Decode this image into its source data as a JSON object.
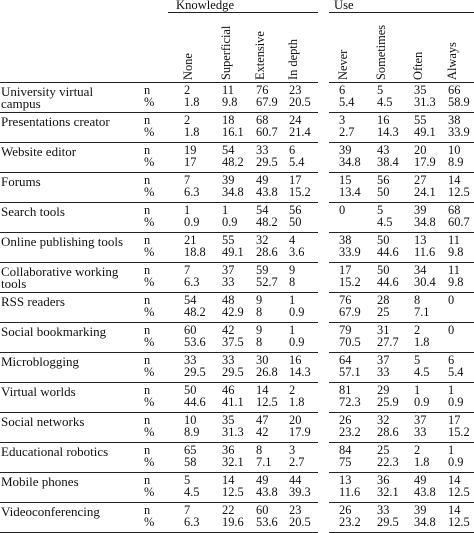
{
  "groups": {
    "knowledge": "Knowledge",
    "use": "Use"
  },
  "knowledge_columns": [
    "None",
    "Superficial",
    "Extensive",
    "In depth"
  ],
  "use_columns": [
    "Never",
    "Sometimes",
    "Often",
    "Always"
  ],
  "rows": [
    {
      "label": [
        "University virtual",
        "campus"
      ],
      "n": [
        "2",
        "11",
        "76",
        "23",
        "6",
        "5",
        "35",
        "66"
      ],
      "pct": [
        "1.8",
        "9.8",
        "67.9",
        "20.5",
        "5.4",
        "4.5",
        "31.3",
        "58.9"
      ]
    },
    {
      "label": [
        "Presentations creator"
      ],
      "n": [
        "2",
        "18",
        "68",
        "24",
        "3",
        "16",
        "55",
        "38"
      ],
      "pct": [
        "1.8",
        "16.1",
        "60.7",
        "21.4",
        "2.7",
        "14.3",
        "49.1",
        "33.9"
      ]
    },
    {
      "label": [
        "Website editor"
      ],
      "n": [
        "19",
        "54",
        "33",
        "6",
        "39",
        "43",
        "20",
        "10"
      ],
      "pct": [
        "17",
        "48.2",
        "29.5",
        "5.4",
        "34.8",
        "38.4",
        "17.9",
        "8.9"
      ]
    },
    {
      "label": [
        "Forums"
      ],
      "n": [
        "7",
        "39",
        "49",
        "17",
        "15",
        "56",
        "27",
        "14"
      ],
      "pct": [
        "6.3",
        "34.8",
        "43.8",
        "15.2",
        "13.4",
        "50",
        "24.1",
        "12.5"
      ]
    },
    {
      "label": [
        "Search tools"
      ],
      "n": [
        "1",
        "1",
        "54",
        "56",
        "0",
        "5",
        "39",
        "68"
      ],
      "pct": [
        "0.9",
        "0.9",
        "48.2",
        "50",
        "",
        "4.5",
        "34.8",
        "60.7"
      ]
    },
    {
      "label": [
        "Online publishing tools"
      ],
      "n": [
        "21",
        "55",
        "32",
        "4",
        "38",
        "50",
        "13",
        "11"
      ],
      "pct": [
        "18.8",
        "49.1",
        "28.6",
        "3.6",
        "33.9",
        "44.6",
        "11.6",
        "9.8"
      ]
    },
    {
      "label": [
        "Collaborative working",
        "tools"
      ],
      "n": [
        "7",
        "37",
        "59",
        "9",
        "17",
        "50",
        "34",
        "11"
      ],
      "pct": [
        "6.3",
        "33",
        "52.7",
        "8",
        "15.2",
        "44.6",
        "30.4",
        "9.8"
      ]
    },
    {
      "label": [
        "RSS readers"
      ],
      "n": [
        "54",
        "48",
        "9",
        "1",
        "76",
        "28",
        "8",
        "0"
      ],
      "pct": [
        "48.2",
        "42.9",
        "8",
        "0.9",
        "67.9",
        "25",
        "7.1",
        ""
      ]
    },
    {
      "label": [
        "Social bookmarking"
      ],
      "n": [
        "60",
        "42",
        "9",
        "1",
        "79",
        "31",
        "2",
        "0"
      ],
      "pct": [
        "53.6",
        "37.5",
        "8",
        "0.9",
        "70.5",
        "27.7",
        "1.8",
        ""
      ]
    },
    {
      "label": [
        "Microblogging"
      ],
      "n": [
        "33",
        "33",
        "30",
        "16",
        "64",
        "37",
        "5",
        "6"
      ],
      "pct": [
        "29.5",
        "29.5",
        "26.8",
        "14.3",
        "57.1",
        "33",
        "4.5",
        "5.4"
      ]
    },
    {
      "label": [
        "Virtual worlds"
      ],
      "n": [
        "50",
        "46",
        "14",
        "2",
        "81",
        "29",
        "1",
        "1"
      ],
      "pct": [
        "44.6",
        "41.1",
        "12.5",
        "1.8",
        "72.3",
        "25.9",
        "0.9",
        "0.9"
      ]
    },
    {
      "label": [
        "Social networks"
      ],
      "n": [
        "10",
        "35",
        "47",
        "20",
        "26",
        "32",
        "37",
        "17"
      ],
      "pct": [
        "8.9",
        "31.3",
        "42",
        "17.9",
        "23.2",
        "28.6",
        "33",
        "15.2"
      ]
    },
    {
      "label": [
        "Educational robotics"
      ],
      "n": [
        "65",
        "36",
        "8",
        "3",
        "84",
        "25",
        "2",
        "1"
      ],
      "pct": [
        "58",
        "32.1",
        "7.1",
        "2.7",
        "75",
        "22.3",
        "1.8",
        "0.9"
      ]
    },
    {
      "label": [
        "Mobile phones"
      ],
      "n": [
        "5",
        "14",
        "49",
        "44",
        "13",
        "36",
        "49",
        "14"
      ],
      "pct": [
        "4.5",
        "12.5",
        "43.8",
        "39.3",
        "11.6",
        "32.1",
        "43.8",
        "12.5"
      ]
    },
    {
      "label": [
        "Videoconferencing"
      ],
      "n": [
        "7",
        "22",
        "60",
        "23",
        "26",
        "33",
        "39",
        "14"
      ],
      "pct": [
        "6.3",
        "19.6",
        "53.6",
        "20.5",
        "23.2",
        "29.5",
        "34.8",
        "12.5"
      ]
    }
  ],
  "n_symbol": "n",
  "pct_symbol": "%"
}
